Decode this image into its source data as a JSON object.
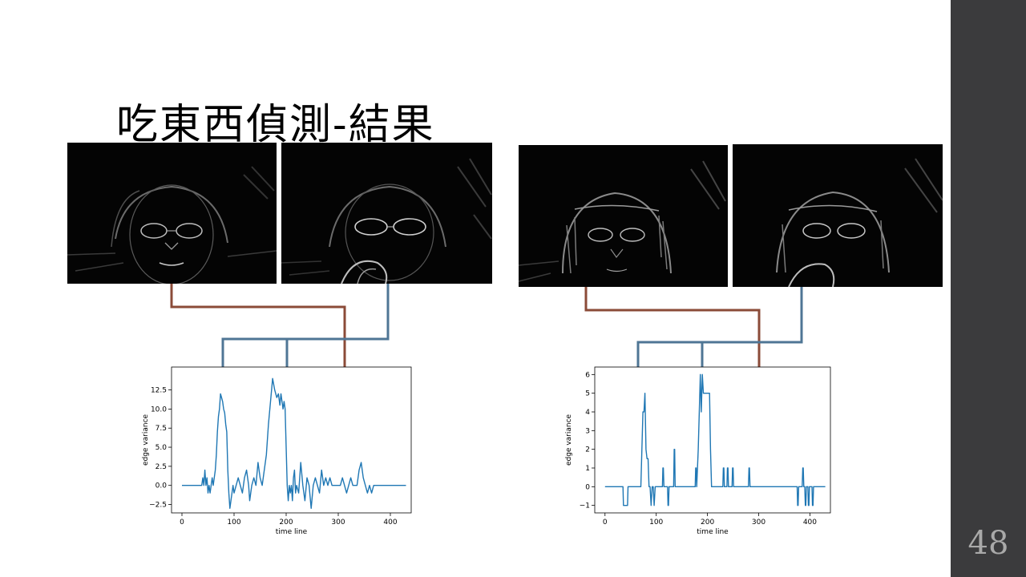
{
  "slide": {
    "title": "吃東西偵測-結果",
    "page_number": "48",
    "colors": {
      "sidebar": "#3b3b3d",
      "page_number": "#a9a9a9",
      "arrow_brown": "#8b4b38",
      "arrow_blue": "#4f7695",
      "line": "#1f77b4"
    }
  },
  "images": [
    {
      "name": "edge-image-1",
      "icon": "face-edge-map"
    },
    {
      "name": "edge-image-2",
      "icon": "face-edge-map-hand"
    },
    {
      "name": "edge-image-3",
      "icon": "face-edge-map"
    },
    {
      "name": "edge-image-4",
      "icon": "face-edge-map-hand"
    }
  ],
  "chart_data": [
    {
      "type": "line",
      "xlabel": "time line",
      "ylabel": "edge variance",
      "xlim": [
        -20,
        440
      ],
      "ylim": [
        -3.6,
        15.5
      ],
      "xticks": [
        0,
        100,
        200,
        300,
        400
      ],
      "xtick_labels": [
        "0",
        "100",
        "200",
        "300",
        "400"
      ],
      "yticks": [
        -2.5,
        0.0,
        2.5,
        5.0,
        7.5,
        10.0,
        12.5
      ],
      "ytick_labels": [
        "−2.5",
        "0.0",
        "2.5",
        "5.0",
        "7.5",
        "10.0",
        "12.5"
      ],
      "arrow_targets": [
        80,
        207,
        325
      ],
      "series": [
        {
          "x": [
            0,
            38,
            40,
            42,
            44,
            46,
            48,
            50,
            52,
            54,
            56,
            58,
            60,
            62,
            64,
            66,
            68,
            70,
            72,
            74,
            76,
            78,
            80,
            82,
            84,
            86,
            88,
            90,
            92,
            94,
            96,
            98,
            100,
            104,
            108,
            112,
            116,
            120,
            124,
            128,
            130,
            134,
            138,
            142,
            146,
            150,
            154,
            158,
            162,
            166,
            170,
            174,
            178,
            182,
            185,
            188,
            190,
            192,
            194,
            196,
            198,
            200,
            202,
            204,
            206,
            208,
            210,
            212,
            214,
            216,
            218,
            220,
            224,
            228,
            232,
            236,
            240,
            244,
            248,
            252,
            256,
            260,
            264,
            268,
            272,
            276,
            280,
            284,
            288,
            292,
            296,
            300,
            304,
            308,
            312,
            316,
            320,
            324,
            328,
            332,
            336,
            340,
            344,
            348,
            352,
            356,
            360,
            364,
            368,
            372,
            376,
            380,
            384,
            388,
            392,
            396,
            400,
            430
          ],
          "y": [
            0,
            0,
            1,
            0,
            2,
            0,
            1,
            -1,
            0,
            -1,
            0,
            1,
            0,
            1,
            2,
            4,
            7,
            9,
            10,
            12,
            11.5,
            11,
            10,
            9.5,
            8,
            7,
            2,
            -1,
            -3,
            -2,
            -1,
            0,
            -1,
            0,
            1,
            0,
            -1,
            1,
            2,
            0,
            -2,
            0,
            1,
            0,
            3,
            1,
            0,
            2,
            4,
            8,
            11,
            14,
            12.5,
            11.5,
            12,
            10.5,
            12,
            11,
            10,
            11,
            10,
            5,
            0,
            -2,
            0,
            -1,
            0,
            -2,
            1,
            2,
            -1,
            0,
            -1,
            3,
            0,
            -2,
            1,
            0,
            -3,
            0,
            1,
            0,
            -1,
            2,
            0,
            1,
            0,
            1,
            0,
            0,
            0,
            0,
            0,
            1,
            0,
            -1,
            0,
            1,
            0,
            0,
            0,
            2,
            3,
            1,
            0,
            -1,
            0,
            -1,
            0,
            0,
            0,
            0,
            0,
            0,
            0,
            0,
            0,
            0
          ]
        }
      ]
    },
    {
      "type": "line",
      "xlabel": "time line",
      "ylabel": "edge variance",
      "xlim": [
        -20,
        440
      ],
      "ylim": [
        -1.4,
        6.4
      ],
      "xticks": [
        0,
        100,
        200,
        300,
        400
      ],
      "xtick_labels": [
        "0",
        "100",
        "200",
        "300",
        "400"
      ],
      "yticks": [
        -1,
        0,
        1,
        2,
        3,
        4,
        5,
        6
      ],
      "ytick_labels": [
        "−1",
        "0",
        "1",
        "2",
        "3",
        "4",
        "5",
        "6"
      ],
      "arrow_targets": [
        68,
        196,
        311
      ],
      "series": [
        {
          "x": [
            0,
            35,
            36,
            44,
            45,
            70,
            72,
            74,
            76,
            78,
            80,
            82,
            84,
            86,
            88,
            90,
            92,
            94,
            96,
            98,
            100,
            102,
            104,
            112,
            113,
            114,
            115,
            122,
            123,
            124,
            125,
            134,
            135,
            136,
            137,
            176,
            177,
            178,
            179,
            182,
            184,
            186,
            188,
            190,
            192,
            194,
            196,
            198,
            200,
            202,
            204,
            206,
            208,
            210,
            212,
            214,
            216,
            218,
            220,
            222,
            224,
            226,
            228,
            230,
            231,
            232,
            233,
            238,
            239,
            240,
            241,
            248,
            249,
            250,
            251,
            280,
            281,
            282,
            283,
            375,
            376,
            377,
            378,
            385,
            386,
            387,
            388,
            390,
            391,
            392,
            393,
            396,
            397,
            398,
            399,
            404,
            405,
            406,
            407,
            430
          ],
          "y": [
            0,
            0,
            -1,
            -1,
            0,
            0,
            2,
            4,
            4,
            5,
            2,
            1.5,
            1.5,
            0,
            0,
            -1,
            0,
            0,
            -1,
            0,
            0,
            0,
            0,
            0,
            1,
            1,
            0,
            0,
            -1,
            -1,
            0,
            0,
            2,
            2,
            0,
            0,
            1,
            1,
            0,
            2,
            4,
            6,
            4,
            6,
            5,
            5,
            5,
            5,
            5,
            5,
            5,
            2,
            0,
            0,
            0,
            0,
            0,
            0,
            0,
            0,
            0,
            0,
            0,
            0,
            1,
            1,
            0,
            0,
            1,
            1,
            0,
            0,
            1,
            1,
            0,
            0,
            1,
            1,
            0,
            0,
            -1,
            -1,
            0,
            0,
            1,
            1,
            0,
            0,
            -1,
            -1,
            0,
            0,
            -1,
            -1,
            0,
            0,
            -1,
            -1,
            0,
            0
          ]
        }
      ]
    }
  ]
}
